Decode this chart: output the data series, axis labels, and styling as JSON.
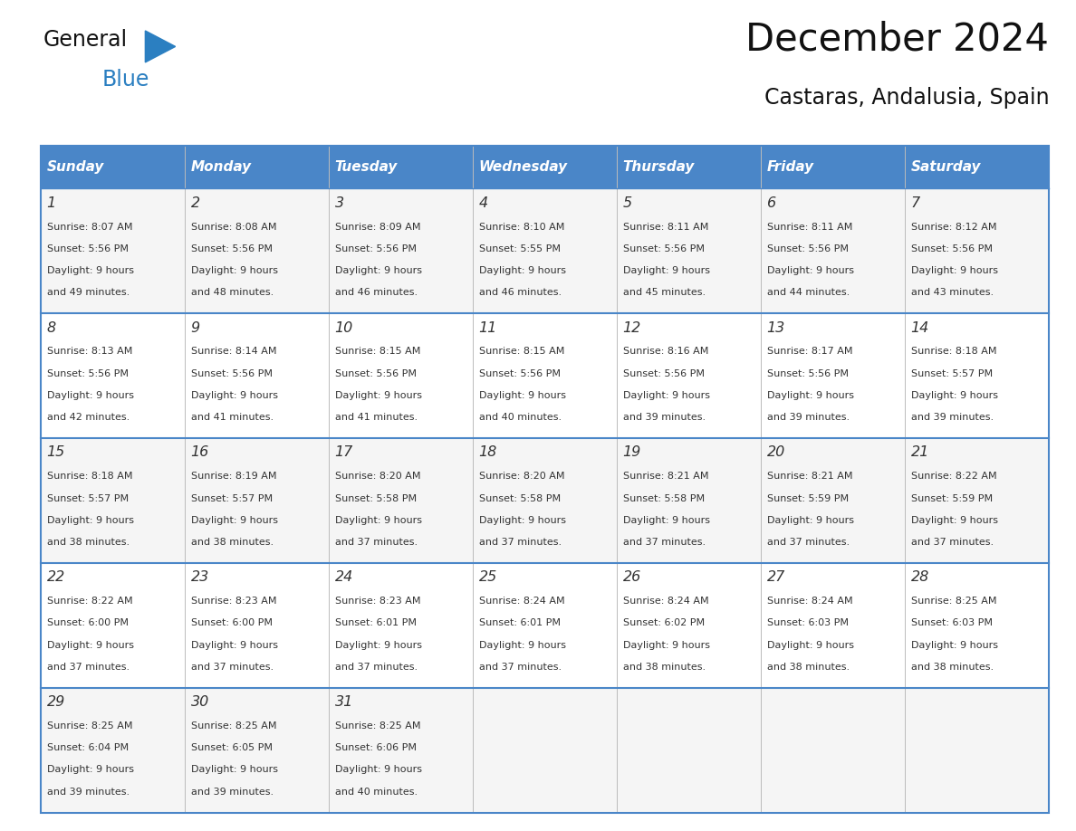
{
  "title": "December 2024",
  "subtitle": "Castaras, Andalusia, Spain",
  "header_color": "#4a86c8",
  "header_text_color": "#ffffff",
  "border_color": "#4a86c8",
  "text_color": "#333333",
  "days_of_week": [
    "Sunday",
    "Monday",
    "Tuesday",
    "Wednesday",
    "Thursday",
    "Friday",
    "Saturday"
  ],
  "weeks": [
    [
      {
        "day": "1",
        "sunrise": "8:07 AM",
        "sunset": "5:56 PM",
        "daylight_h": "9 hours",
        "daylight_m": "and 49 minutes."
      },
      {
        "day": "2",
        "sunrise": "8:08 AM",
        "sunset": "5:56 PM",
        "daylight_h": "9 hours",
        "daylight_m": "and 48 minutes."
      },
      {
        "day": "3",
        "sunrise": "8:09 AM",
        "sunset": "5:56 PM",
        "daylight_h": "9 hours",
        "daylight_m": "and 46 minutes."
      },
      {
        "day": "4",
        "sunrise": "8:10 AM",
        "sunset": "5:55 PM",
        "daylight_h": "9 hours",
        "daylight_m": "and 46 minutes."
      },
      {
        "day": "5",
        "sunrise": "8:11 AM",
        "sunset": "5:56 PM",
        "daylight_h": "9 hours",
        "daylight_m": "and 45 minutes."
      },
      {
        "day": "6",
        "sunrise": "8:11 AM",
        "sunset": "5:56 PM",
        "daylight_h": "9 hours",
        "daylight_m": "and 44 minutes."
      },
      {
        "day": "7",
        "sunrise": "8:12 AM",
        "sunset": "5:56 PM",
        "daylight_h": "9 hours",
        "daylight_m": "and 43 minutes."
      }
    ],
    [
      {
        "day": "8",
        "sunrise": "8:13 AM",
        "sunset": "5:56 PM",
        "daylight_h": "9 hours",
        "daylight_m": "and 42 minutes."
      },
      {
        "day": "9",
        "sunrise": "8:14 AM",
        "sunset": "5:56 PM",
        "daylight_h": "9 hours",
        "daylight_m": "and 41 minutes."
      },
      {
        "day": "10",
        "sunrise": "8:15 AM",
        "sunset": "5:56 PM",
        "daylight_h": "9 hours",
        "daylight_m": "and 41 minutes."
      },
      {
        "day": "11",
        "sunrise": "8:15 AM",
        "sunset": "5:56 PM",
        "daylight_h": "9 hours",
        "daylight_m": "and 40 minutes."
      },
      {
        "day": "12",
        "sunrise": "8:16 AM",
        "sunset": "5:56 PM",
        "daylight_h": "9 hours",
        "daylight_m": "and 39 minutes."
      },
      {
        "day": "13",
        "sunrise": "8:17 AM",
        "sunset": "5:56 PM",
        "daylight_h": "9 hours",
        "daylight_m": "and 39 minutes."
      },
      {
        "day": "14",
        "sunrise": "8:18 AM",
        "sunset": "5:57 PM",
        "daylight_h": "9 hours",
        "daylight_m": "and 39 minutes."
      }
    ],
    [
      {
        "day": "15",
        "sunrise": "8:18 AM",
        "sunset": "5:57 PM",
        "daylight_h": "9 hours",
        "daylight_m": "and 38 minutes."
      },
      {
        "day": "16",
        "sunrise": "8:19 AM",
        "sunset": "5:57 PM",
        "daylight_h": "9 hours",
        "daylight_m": "and 38 minutes."
      },
      {
        "day": "17",
        "sunrise": "8:20 AM",
        "sunset": "5:58 PM",
        "daylight_h": "9 hours",
        "daylight_m": "and 37 minutes."
      },
      {
        "day": "18",
        "sunrise": "8:20 AM",
        "sunset": "5:58 PM",
        "daylight_h": "9 hours",
        "daylight_m": "and 37 minutes."
      },
      {
        "day": "19",
        "sunrise": "8:21 AM",
        "sunset": "5:58 PM",
        "daylight_h": "9 hours",
        "daylight_m": "and 37 minutes."
      },
      {
        "day": "20",
        "sunrise": "8:21 AM",
        "sunset": "5:59 PM",
        "daylight_h": "9 hours",
        "daylight_m": "and 37 minutes."
      },
      {
        "day": "21",
        "sunrise": "8:22 AM",
        "sunset": "5:59 PM",
        "daylight_h": "9 hours",
        "daylight_m": "and 37 minutes."
      }
    ],
    [
      {
        "day": "22",
        "sunrise": "8:22 AM",
        "sunset": "6:00 PM",
        "daylight_h": "9 hours",
        "daylight_m": "and 37 minutes."
      },
      {
        "day": "23",
        "sunrise": "8:23 AM",
        "sunset": "6:00 PM",
        "daylight_h": "9 hours",
        "daylight_m": "and 37 minutes."
      },
      {
        "day": "24",
        "sunrise": "8:23 AM",
        "sunset": "6:01 PM",
        "daylight_h": "9 hours",
        "daylight_m": "and 37 minutes."
      },
      {
        "day": "25",
        "sunrise": "8:24 AM",
        "sunset": "6:01 PM",
        "daylight_h": "9 hours",
        "daylight_m": "and 37 minutes."
      },
      {
        "day": "26",
        "sunrise": "8:24 AM",
        "sunset": "6:02 PM",
        "daylight_h": "9 hours",
        "daylight_m": "and 38 minutes."
      },
      {
        "day": "27",
        "sunrise": "8:24 AM",
        "sunset": "6:03 PM",
        "daylight_h": "9 hours",
        "daylight_m": "and 38 minutes."
      },
      {
        "day": "28",
        "sunrise": "8:25 AM",
        "sunset": "6:03 PM",
        "daylight_h": "9 hours",
        "daylight_m": "and 38 minutes."
      }
    ],
    [
      {
        "day": "29",
        "sunrise": "8:25 AM",
        "sunset": "6:04 PM",
        "daylight_h": "9 hours",
        "daylight_m": "and 39 minutes."
      },
      {
        "day": "30",
        "sunrise": "8:25 AM",
        "sunset": "6:05 PM",
        "daylight_h": "9 hours",
        "daylight_m": "and 39 minutes."
      },
      {
        "day": "31",
        "sunrise": "8:25 AM",
        "sunset": "6:06 PM",
        "daylight_h": "9 hours",
        "daylight_m": "and 40 minutes."
      },
      null,
      null,
      null,
      null
    ]
  ],
  "fig_width": 11.88,
  "fig_height": 9.18,
  "dpi": 100
}
